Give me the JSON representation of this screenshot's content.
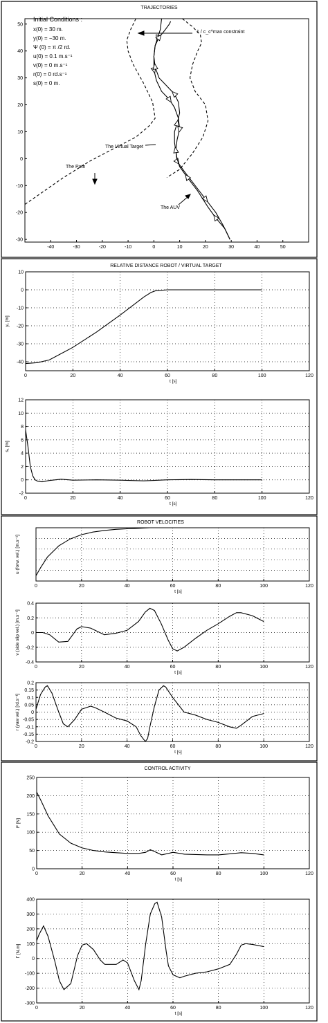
{
  "sections": [
    {
      "title": "TRAJECTORIES"
    },
    {
      "title": "RELATIVE DISTANCE ROBOT / VIRTUAL TARGET"
    },
    {
      "title": "ROBOT VELOCITIES"
    },
    {
      "title": "CONTROL ACTIVITY"
    }
  ],
  "chart_data": [
    {
      "type": "line",
      "title": "TRAJECTORIES",
      "xlabel": "",
      "ylabel": "",
      "xlim": [
        -50,
        60
      ],
      "ylim": [
        -31,
        52
      ],
      "xticks": [
        -40,
        -30,
        -20,
        -10,
        0,
        10,
        20,
        30,
        40,
        50
      ],
      "yticks": [
        -30,
        -20,
        -10,
        0,
        10,
        20,
        30,
        40,
        50
      ],
      "grid": false,
      "initial_conditions": {
        "heading": "Initial Conditions :",
        "lines": [
          "x(0) = 30 m.",
          "y(0) = −30 m.",
          "Ψ (0) = π /2 rd.",
          "u(0) = 0.1 m.s⁻¹",
          "v(0) = 0  m.s⁻¹",
          "r(0) = 0 rd.s⁻¹",
          "s(0) = 0  m."
        ]
      },
      "annotations": [
        {
          "text": "1 / c_c^max constraint"
        },
        {
          "text": "The Virtual Target"
        },
        {
          "text": "The Path"
        },
        {
          "text": "The AUV"
        }
      ],
      "series": [
        {
          "name": "The Path",
          "x": [
            3,
            2.5,
            1.5,
            0.5,
            0,
            0,
            1,
            3,
            6,
            8,
            9.5,
            10,
            9,
            8.5,
            9,
            12,
            16,
            20,
            24,
            27,
            29.5
          ],
          "y": [
            52,
            48,
            45,
            42,
            38,
            33,
            29,
            25,
            22,
            19,
            15,
            11,
            7,
            3,
            -1,
            -5,
            -10,
            -15,
            -20,
            -25,
            -30
          ]
        },
        {
          "name": "The AUV",
          "x": [
            29.5,
            27.5,
            24,
            21,
            17,
            13,
            10,
            9,
            8.5,
            8,
            8,
            9,
            10,
            9.5,
            8,
            5,
            2,
            0.5,
            0,
            0.5,
            2,
            4.5,
            6,
            6.5
          ],
          "y": [
            -30,
            -26,
            -22,
            -18,
            -12,
            -7,
            -3,
            0,
            3,
            6,
            10,
            13,
            17,
            21,
            24,
            27,
            30,
            34,
            38,
            42,
            45,
            48,
            50,
            51
          ]
        },
        {
          "name": "upper-boundary",
          "x": [
            -7,
            -9,
            -10.5,
            -10,
            -8,
            -4,
            -0.5,
            0.5,
            -2,
            -7,
            -15,
            -25,
            -35,
            -50
          ],
          "y": [
            52,
            48,
            44,
            40,
            35,
            28,
            21,
            15,
            12,
            8,
            4,
            -1,
            -7,
            -17
          ]
        },
        {
          "name": "lower-boundary",
          "x": [
            11,
            15,
            18,
            18.5,
            17,
            15,
            14,
            16,
            20,
            21,
            19,
            15,
            10,
            5
          ],
          "y": [
            52,
            49,
            46,
            43,
            40,
            35,
            30,
            25,
            20,
            14,
            8,
            2,
            -4,
            -7
          ]
        }
      ]
    },
    {
      "type": "line",
      "title": "RELATIVE DISTANCE ROBOT / VIRTUAL TARGET",
      "xlabel": "t [s]",
      "ylabel": "y₁ [m]",
      "xlim": [
        0,
        120
      ],
      "ylim": [
        -45,
        10
      ],
      "xticks": [
        0,
        20,
        40,
        60,
        80,
        100,
        120
      ],
      "yticks": [
        10,
        0,
        -10,
        -20,
        -30,
        -40
      ],
      "grid": true,
      "series": [
        {
          "x": [
            0,
            5,
            10,
            20,
            30,
            40,
            45,
            50,
            53,
            55,
            60,
            70,
            80,
            90,
            100
          ],
          "y": [
            -41,
            -40.5,
            -39,
            -32,
            -23.5,
            -14,
            -9,
            -4,
            -1.5,
            -0.5,
            0,
            0,
            0,
            0,
            0
          ]
        }
      ]
    },
    {
      "type": "line",
      "title": "",
      "xlabel": "t [s]",
      "ylabel": "s₁ [m]",
      "xlim": [
        0,
        120
      ],
      "ylim": [
        -2,
        12
      ],
      "xticks": [
        0,
        20,
        40,
        60,
        80,
        100,
        120
      ],
      "yticks": [
        -2,
        0,
        2,
        4,
        6,
        8,
        10,
        12
      ],
      "grid": true,
      "series": [
        {
          "x": [
            0,
            1,
            2,
            3,
            4,
            5,
            7,
            10,
            15,
            20,
            30,
            40,
            50,
            60,
            70,
            80,
            90,
            100
          ],
          "y": [
            7.5,
            5,
            2,
            0.6,
            0,
            -0.2,
            -0.3,
            -0.1,
            0.1,
            -0.05,
            0,
            -0.05,
            -0.15,
            0,
            0.05,
            0,
            0,
            0
          ]
        }
      ]
    },
    {
      "type": "line",
      "title": "ROBOT VELOCITIES",
      "xlabel": "t [s]",
      "ylabel": "u (forw. vel.) [m.s⁻¹]",
      "xlim": [
        0,
        120
      ],
      "ylim": [
        0,
        1
      ],
      "xticks": [
        0,
        20,
        40,
        60,
        80,
        100,
        120
      ],
      "yticks": [],
      "grid": true,
      "series": [
        {
          "x": [
            0,
            2,
            5,
            10,
            15,
            20,
            25,
            30,
            35,
            40,
            45,
            50
          ],
          "y": [
            0.1,
            0.25,
            0.45,
            0.66,
            0.79,
            0.87,
            0.92,
            0.95,
            0.97,
            0.98,
            0.99,
            1.0
          ]
        }
      ]
    },
    {
      "type": "line",
      "title": "",
      "xlabel": "t [s]",
      "ylabel": "v (side slip vel.) [m.s⁻¹]",
      "xlim": [
        0,
        120
      ],
      "ylim": [
        -0.4,
        0.4
      ],
      "xticks": [
        0,
        20,
        40,
        60,
        80,
        100,
        120
      ],
      "yticks": [
        0.4,
        0.2,
        0,
        -0.2,
        -0.4
      ],
      "grid": true,
      "series": [
        {
          "x": [
            0,
            3,
            6,
            10,
            14,
            18,
            20,
            24,
            28,
            30,
            35,
            40,
            45,
            48,
            50,
            52,
            55,
            58,
            60,
            62,
            65,
            70,
            75,
            80,
            85,
            88,
            90,
            95,
            100
          ],
          "y": [
            0,
            0,
            -0.03,
            -0.13,
            -0.12,
            0.05,
            0.08,
            0.06,
            0.0,
            -0.03,
            -0.01,
            0.03,
            0.15,
            0.28,
            0.33,
            0.3,
            0.12,
            -0.1,
            -0.22,
            -0.25,
            -0.2,
            -0.08,
            0.03,
            0.12,
            0.22,
            0.27,
            0.27,
            0.23,
            0.15
          ]
        }
      ]
    },
    {
      "type": "line",
      "title": "",
      "xlabel": "t [s]",
      "ylabel": "r (yaw vel.) [rd.s⁻¹]",
      "xlim": [
        0,
        120
      ],
      "ylim": [
        -0.2,
        0.2
      ],
      "xticks": [
        0,
        20,
        40,
        60,
        80,
        100,
        120
      ],
      "yticks": [
        0.2,
        0.15,
        0.1,
        0.05,
        0,
        -0.05,
        -0.1,
        -0.15,
        -0.2
      ],
      "grid": true,
      "series": [
        {
          "x": [
            0,
            2,
            4,
            5,
            7,
            10,
            12,
            14,
            17,
            20,
            24,
            26,
            30,
            35,
            40,
            44,
            46,
            48,
            49,
            50,
            52,
            54,
            56,
            57,
            60,
            65,
            70,
            75,
            80,
            85,
            88,
            90,
            95,
            100
          ],
          "y": [
            0.02,
            0.12,
            0.17,
            0.18,
            0.13,
            0.0,
            -0.08,
            -0.1,
            -0.05,
            0.02,
            0.04,
            0.03,
            0.0,
            -0.04,
            -0.06,
            -0.1,
            -0.16,
            -0.2,
            -0.18,
            -0.1,
            0.04,
            0.15,
            0.18,
            0.17,
            0.1,
            0.0,
            -0.02,
            -0.05,
            -0.07,
            -0.1,
            -0.11,
            -0.09,
            -0.03,
            -0.01
          ]
        }
      ]
    },
    {
      "type": "line",
      "title": "CONTROL ACTIVITY",
      "xlabel": "t [s]",
      "ylabel": "F [N]",
      "xlim": [
        0,
        120
      ],
      "ylim": [
        0,
        250
      ],
      "xticks": [
        0,
        20,
        40,
        60,
        80,
        100,
        120
      ],
      "yticks": [
        250,
        200,
        150,
        100,
        50,
        0
      ],
      "grid": true,
      "series": [
        {
          "x": [
            0,
            2,
            5,
            8,
            10,
            15,
            20,
            25,
            30,
            35,
            40,
            45,
            48,
            50,
            52,
            55,
            58,
            60,
            62,
            65,
            70,
            75,
            80,
            85,
            90,
            95,
            100
          ],
          "y": [
            210,
            185,
            145,
            115,
            95,
            70,
            57,
            50,
            46,
            44,
            42,
            42,
            45,
            52,
            47,
            38,
            42,
            45,
            43,
            40,
            39,
            38,
            38,
            41,
            44,
            42,
            38
          ]
        }
      ]
    },
    {
      "type": "line",
      "title": "",
      "xlabel": "t [s]",
      "ylabel": "Γ [N.m]",
      "xlim": [
        0,
        120
      ],
      "ylim": [
        -300,
        400
      ],
      "xticks": [
        0,
        20,
        40,
        60,
        80,
        100,
        120
      ],
      "yticks": [
        400,
        300,
        200,
        100,
        0,
        -100,
        -200,
        -300
      ],
      "grid": true,
      "series": [
        {
          "x": [
            0,
            1,
            3,
            5,
            8,
            10,
            12,
            15,
            18,
            20,
            22,
            25,
            28,
            30,
            35,
            38,
            40,
            43,
            45,
            46,
            48,
            50,
            52,
            53,
            55,
            57,
            58,
            60,
            63,
            65,
            70,
            75,
            80,
            85,
            88,
            90,
            92,
            95,
            100
          ],
          "y": [
            120,
            160,
            220,
            150,
            -20,
            -150,
            -210,
            -170,
            20,
            90,
            100,
            60,
            -10,
            -40,
            -40,
            -10,
            -30,
            -150,
            -210,
            -150,
            100,
            300,
            370,
            380,
            280,
            50,
            -50,
            -110,
            -130,
            -120,
            -100,
            -90,
            -70,
            -40,
            30,
            90,
            100,
            95,
            80
          ]
        }
      ]
    }
  ]
}
